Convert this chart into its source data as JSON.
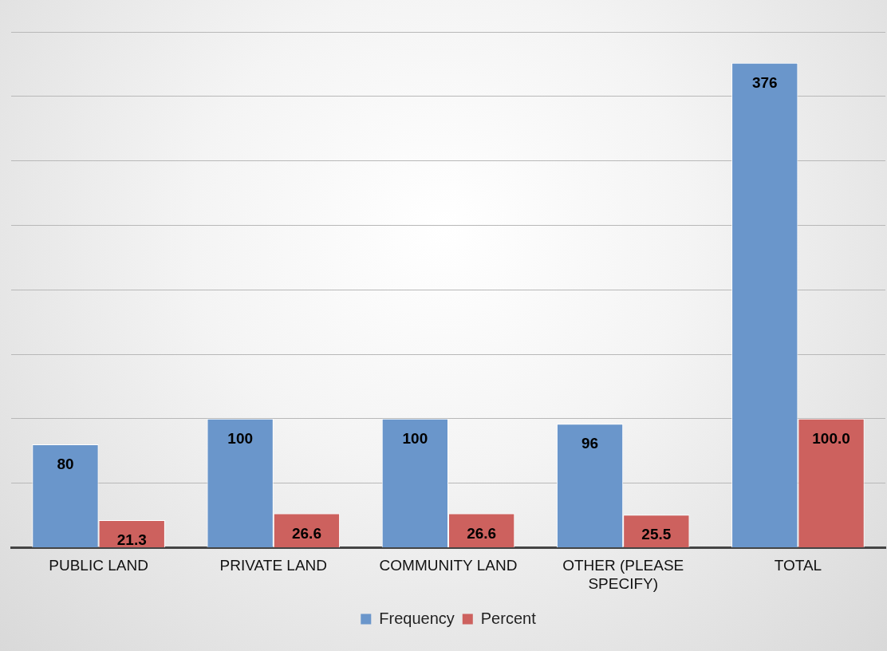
{
  "chart_data": {
    "type": "bar",
    "categories": [
      "PUBLIC LAND",
      "PRIVATE LAND",
      "COMMUNITY LAND",
      "OTHER (PLEASE SPECIFY)",
      "TOTAL"
    ],
    "series": [
      {
        "name": "Frequency",
        "color": "#6a96cb",
        "values": [
          80,
          100,
          100,
          96,
          376
        ],
        "value_labels": [
          "80",
          "100",
          "100",
          "96",
          "376"
        ]
      },
      {
        "name": "Percent",
        "color": "#cd615e",
        "values": [
          21.3,
          26.6,
          26.6,
          25.5,
          100
        ],
        "value_labels": [
          "21.3",
          "26.6",
          "26.6",
          "25.5",
          "100.0"
        ]
      }
    ],
    "ylim": [
      0,
      400
    ],
    "yticks": [
      0,
      50,
      100,
      150,
      200,
      250,
      300,
      350,
      400
    ],
    "grid": "y",
    "legend": "bottom",
    "tick_labels": "x"
  }
}
